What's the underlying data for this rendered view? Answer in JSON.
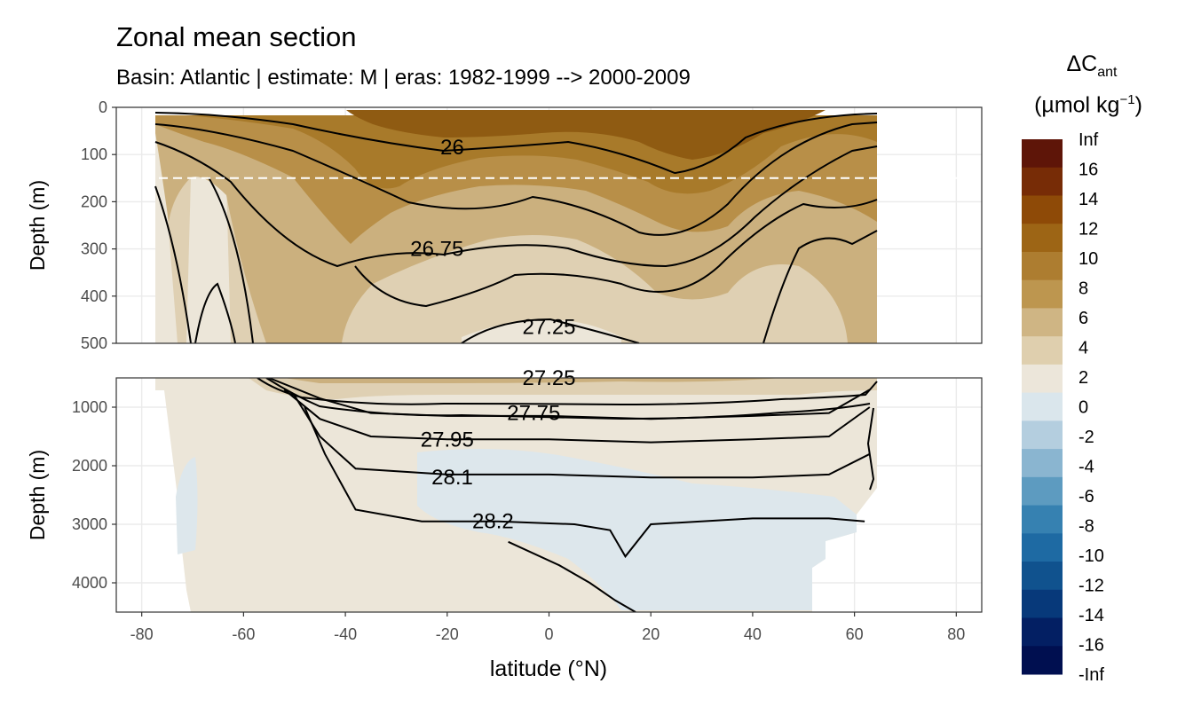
{
  "header": {
    "title": "Zonal mean section",
    "subtitle": "Basin: Atlantic | estimate: M  | eras: 1982-1999 --> 2000-2009"
  },
  "chart_data": {
    "type": "heatmap",
    "xlabel": "latitude (°N)",
    "x_ticks": [
      "-80",
      "-60",
      "-40",
      "-20",
      "0",
      "20",
      "40",
      "60",
      "80"
    ],
    "x_tick_values": [
      -80,
      -60,
      -40,
      -20,
      0,
      20,
      40,
      60,
      80
    ],
    "xlim": [
      -85,
      85
    ],
    "panels": [
      {
        "name": "upper",
        "ylabel": "Depth (m)",
        "ylim": [
          0,
          500
        ],
        "y_ticks": [
          "0",
          "100",
          "200",
          "300",
          "400",
          "500"
        ],
        "y_tick_values": [
          0,
          100,
          200,
          300,
          400,
          500
        ],
        "reference_depth": 150,
        "contour_labels": [
          {
            "text": "26",
            "lat": -19,
            "depth": 85
          },
          {
            "text": "26.75",
            "lat": -22,
            "depth": 300
          },
          {
            "text": "27.25",
            "lat": 0,
            "depth": 465
          }
        ],
        "isopycnal_depths": [
          {
            "lat": [
              -77,
              -50,
              -38,
              -20,
              0,
              20,
              30,
              45,
              64
            ],
            "depth": [
              40,
              35,
              60,
              95,
              75,
              120,
              110,
              40,
              25
            ]
          },
          {
            "lat": [
              -77,
              -50,
              -38,
              -20,
              0,
              20,
              30,
              45,
              64
            ],
            "depth": [
              60,
              60,
              130,
              190,
              150,
              220,
              210,
              80,
              40
            ]
          },
          {
            "lat": [
              -77,
              -55,
              -40,
              -25,
              0,
              20,
              30,
              50,
              64
            ],
            "depth": [
              90,
              120,
              260,
              310,
              290,
              350,
              330,
              170,
              90
            ]
          },
          {
            "lat": [
              -77,
              -55,
              -42,
              -25,
              0,
              20,
              30,
              50,
              64
            ],
            "depth": [
              120,
              200,
              400,
              420,
              400,
              450,
              440,
              300,
              180
            ]
          }
        ]
      },
      {
        "name": "lower",
        "ylabel": "Depth (m)",
        "ylim": [
          500,
          4500
        ],
        "y_ticks": [
          "1000",
          "2000",
          "3000",
          "4000"
        ],
        "y_tick_values": [
          1000,
          2000,
          3000,
          4000
        ],
        "contour_labels": [
          {
            "text": "27.25",
            "lat": 0,
            "depth": 500
          },
          {
            "text": "27.75",
            "lat": -3,
            "depth": 1100
          },
          {
            "text": "27.95",
            "lat": -20,
            "depth": 1550
          },
          {
            "text": "28.1",
            "lat": -19,
            "depth": 2200
          },
          {
            "text": "28.2",
            "lat": -11,
            "depth": 2950
          }
        ],
        "isopycnals": [
          {
            "label": "27.75",
            "lat": [
              -55,
              -45,
              -35,
              -20,
              0,
              20,
              40,
              55,
              63
            ],
            "depth": [
              500,
              850,
              1100,
              1150,
              1150,
              1200,
              1150,
              1100,
              700
            ]
          },
          {
            "label": "27.95",
            "lat": [
              -52,
              -45,
              -35,
              -20,
              0,
              20,
              40,
              55,
              63
            ],
            "depth": [
              700,
              1200,
              1500,
              1550,
              1550,
              1600,
              1550,
              1500,
              1000
            ]
          },
          {
            "label": "28.1",
            "lat": [
              -50,
              -45,
              -38,
              -20,
              0,
              20,
              40,
              55,
              63
            ],
            "depth": [
              800,
              1500,
              2050,
              2150,
              2150,
              2200,
              2200,
              2150,
              1800
            ]
          },
          {
            "label": "28.2",
            "lat": [
              -48,
              -44,
              -38,
              -25,
              -10,
              5,
              12,
              15,
              20,
              40,
              55,
              62
            ],
            "depth": [
              1000,
              1800,
              2750,
              2950,
              2950,
              3000,
              3100,
              3550,
              3000,
              2900,
              2900,
              2950
            ]
          },
          {
            "label": "",
            "lat": [
              -8,
              2,
              8,
              13,
              17
            ],
            "depth": [
              3300,
              3700,
              4000,
              4300,
              4500
            ]
          }
        ]
      }
    ],
    "fill_regions": [
      {
        "band": "0 to 2",
        "color": "#ece6d9"
      },
      {
        "band": "2 to 4",
        "color": "#dfd0b3"
      },
      {
        "band": "4 to 6",
        "color": "#cbb07e"
      },
      {
        "band": "6 to 8",
        "color": "#b88f48"
      },
      {
        "band": "8 to 10",
        "color": "#a87a2a"
      },
      {
        "band": "10 to 12",
        "color": "#8f5b12"
      },
      {
        "band": "-2 to 0",
        "color": "#dde7ec"
      }
    ],
    "legend": {
      "title_main": "ΔC",
      "title_sub": "ant",
      "units": "(µmol kg",
      "units_sup": "−1",
      "units_close": ")",
      "placement": "right",
      "breaks": [
        "Inf",
        "16",
        "14",
        "12",
        "10",
        "8",
        "6",
        "4",
        "2",
        "0",
        "-2",
        "-4",
        "-6",
        "-8",
        "-10",
        "-12",
        "-14",
        "-16",
        "-Inf"
      ],
      "colors": [
        "#5e1508",
        "#772c06",
        "#8e4a07",
        "#9d6515",
        "#ad7d30",
        "#bd964f",
        "#cfb584",
        "#dfcfae",
        "#ece6da",
        "#dae6ec",
        "#b4cedf",
        "#8ab5d0",
        "#5d9bc0",
        "#3681b1",
        "#1e6aa3",
        "#10528e",
        "#07397a",
        "#031f63",
        "#000f50"
      ]
    }
  }
}
